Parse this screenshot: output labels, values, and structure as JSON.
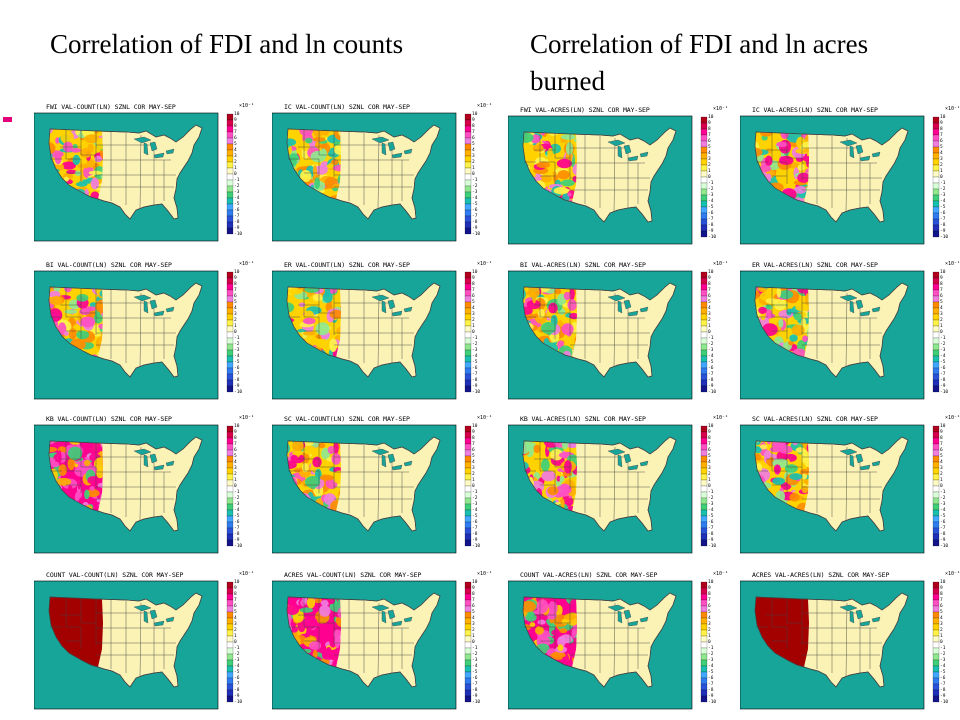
{
  "headings": {
    "left": "Correlation of FDI and ln counts",
    "right": "Correlation of FDI and ln acres burned"
  },
  "colors": {
    "ocean": "#17a59a",
    "land": "#fbf3b6",
    "border": "#444444",
    "saturated": "#a30000"
  },
  "colorbar": {
    "scale_label": "×10⁻¹",
    "ticks": [
      "10",
      "9",
      "8",
      "7",
      "6",
      "5",
      "4",
      "3",
      "2",
      "1",
      "0",
      "-1",
      "-2",
      "-3",
      "-4",
      "-5",
      "-6",
      "-7",
      "-8",
      "-9",
      "-10"
    ],
    "colors": [
      "#b0001e",
      "#d6004a",
      "#ff0090",
      "#ff4fc3",
      "#f07de0",
      "#ff8c00",
      "#ffb000",
      "#ffd200",
      "#fff24a",
      "#fffbc4",
      "#ffffff",
      "#d8ffd8",
      "#8fe88f",
      "#3ecf78",
      "#19c0b0",
      "#42a8ff",
      "#2f7cf0",
      "#2a52d8",
      "#1f2fb8",
      "#14148a"
    ]
  },
  "panels": [
    {
      "id": "count-fwi",
      "title": "FWI VAL-COUNT(LN) SZNL COR MAY-SEP",
      "pattern": "mixed"
    },
    {
      "id": "count-ic",
      "title": "IC VAL-COUNT(LN) SZNL COR MAY-SEP",
      "pattern": "mixed"
    },
    {
      "id": "count-bi",
      "title": "BI VAL-COUNT(LN) SZNL COR MAY-SEP",
      "pattern": "mixed"
    },
    {
      "id": "count-er",
      "title": "ER VAL-COUNT(LN) SZNL COR MAY-SEP",
      "pattern": "mixed"
    },
    {
      "id": "count-kb",
      "title": "KB VAL-COUNT(LN) SZNL COR MAY-SEP",
      "pattern": "strong"
    },
    {
      "id": "count-sc",
      "title": "SC VAL-COUNT(LN) SZNL COR MAY-SEP",
      "pattern": "mixed"
    },
    {
      "id": "count-count",
      "title": "COUNT VAL-COUNT(LN) SZNL COR MAY-SEP",
      "pattern": "saturated"
    },
    {
      "id": "count-acres",
      "title": "ACRES VAL-COUNT(LN) SZNL COR MAY-SEP",
      "pattern": "strong"
    },
    {
      "id": "acres-fwi",
      "title": "FWI VAL-ACRES(LN) SZNL COR MAY-SEP",
      "pattern": "mixed"
    },
    {
      "id": "acres-ic",
      "title": "IC VAL-ACRES(LN) SZNL COR MAY-SEP",
      "pattern": "mixed"
    },
    {
      "id": "acres-bi",
      "title": "BI VAL-ACRES(LN) SZNL COR MAY-SEP",
      "pattern": "mixed"
    },
    {
      "id": "acres-er",
      "title": "ER VAL-ACRES(LN) SZNL COR MAY-SEP",
      "pattern": "mixed"
    },
    {
      "id": "acres-kb",
      "title": "KB VAL-ACRES(LN) SZNL COR MAY-SEP",
      "pattern": "mixed"
    },
    {
      "id": "acres-sc",
      "title": "SC VAL-ACRES(LN) SZNL COR MAY-SEP",
      "pattern": "mixed"
    },
    {
      "id": "acres-count",
      "title": "COUNT VAL-ACRES(LN) SZNL COR MAY-SEP",
      "pattern": "strong"
    },
    {
      "id": "acres-acres",
      "title": "ACRES VAL-ACRES(LN) SZNL COR MAY-SEP",
      "pattern": "saturated"
    }
  ]
}
